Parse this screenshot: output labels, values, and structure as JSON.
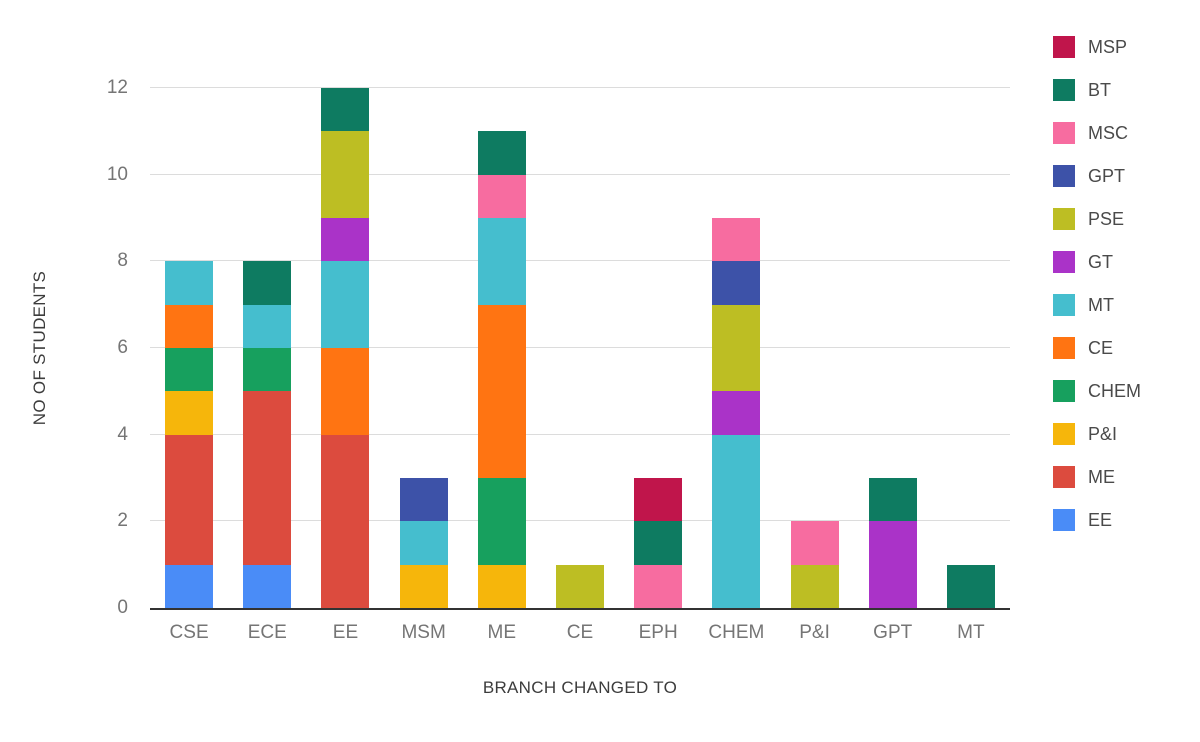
{
  "chart_data": {
    "type": "bar",
    "stacked": true,
    "title": "",
    "xlabel": "BRANCH CHANGED TO",
    "ylabel": "NO OF STUDENTS",
    "ylim": [
      0,
      12
    ],
    "yticks": [
      0,
      2,
      4,
      6,
      8,
      10,
      12
    ],
    "grid": true,
    "legend_position": "right",
    "legend": [
      "MSP",
      "BT",
      "MSC",
      "GPT",
      "PSE",
      "GT",
      "MT",
      "CE",
      "CHEM",
      "P&I",
      "ME",
      "EE"
    ],
    "categories": [
      "CSE",
      "ECE",
      "EE",
      "MSM",
      "ME",
      "CE",
      "EPH",
      "CHEM",
      "P&I",
      "GPT",
      "MT"
    ],
    "series": [
      {
        "name": "EE",
        "color": "#4a8cf7",
        "values": [
          1,
          1,
          0,
          0,
          0,
          0,
          0,
          0,
          0,
          0,
          0
        ]
      },
      {
        "name": "ME",
        "color": "#dc4b3e",
        "values": [
          3,
          4,
          4,
          0,
          0,
          0,
          0,
          0,
          0,
          0,
          0
        ]
      },
      {
        "name": "P&I",
        "color": "#f6b60b",
        "values": [
          1,
          0,
          0,
          1,
          1,
          0,
          0,
          0,
          0,
          0,
          0
        ]
      },
      {
        "name": "CHEM",
        "color": "#17a05e",
        "values": [
          1,
          1,
          0,
          0,
          2,
          0,
          0,
          0,
          0,
          0,
          0
        ]
      },
      {
        "name": "CE",
        "color": "#ff7412",
        "values": [
          1,
          0,
          2,
          0,
          4,
          0,
          0,
          0,
          0,
          0,
          0
        ]
      },
      {
        "name": "MT",
        "color": "#45bece",
        "values": [
          1,
          1,
          2,
          1,
          2,
          0,
          0,
          4,
          0,
          0,
          0
        ]
      },
      {
        "name": "GT",
        "color": "#aa33c8",
        "values": [
          0,
          0,
          1,
          0,
          0,
          0,
          0,
          1,
          0,
          2,
          0
        ]
      },
      {
        "name": "PSE",
        "color": "#bdbe23",
        "values": [
          0,
          0,
          2,
          0,
          0,
          1,
          0,
          2,
          1,
          0,
          0
        ]
      },
      {
        "name": "GPT",
        "color": "#3d52a8",
        "values": [
          0,
          0,
          0,
          1,
          0,
          0,
          0,
          1,
          0,
          0,
          0
        ]
      },
      {
        "name": "MSC",
        "color": "#f76ca0",
        "values": [
          0,
          0,
          0,
          0,
          1,
          0,
          1,
          1,
          1,
          0,
          0
        ]
      },
      {
        "name": "BT",
        "color": "#0e7b61",
        "values": [
          0,
          1,
          1,
          0,
          1,
          0,
          1,
          0,
          0,
          1,
          1
        ]
      },
      {
        "name": "MSP",
        "color": "#c0154b",
        "values": [
          0,
          0,
          0,
          0,
          0,
          0,
          1,
          0,
          0,
          0,
          0
        ]
      }
    ]
  }
}
